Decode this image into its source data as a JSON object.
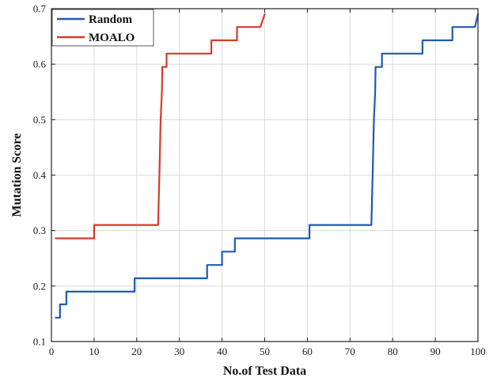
{
  "chart_data": {
    "type": "line",
    "xlabel": "No.of Test Data",
    "ylabel": "Mutation Score",
    "xlim": [
      0,
      100
    ],
    "ylim": [
      0.1,
      0.7
    ],
    "xticks": [
      0,
      10,
      20,
      30,
      40,
      50,
      60,
      70,
      80,
      90,
      100
    ],
    "yticks": [
      0.1,
      0.2,
      0.3,
      0.4,
      0.5,
      0.6,
      0.7
    ],
    "xtick_labels": [
      "0",
      "10",
      "20",
      "30",
      "40",
      "50",
      "60",
      "70",
      "80",
      "90",
      "100"
    ],
    "ytick_labels": [
      "0.1",
      "0.2",
      "0.3",
      "0.4",
      "0.5",
      "0.6",
      "0.7"
    ],
    "grid": true,
    "legend_position": "top-left",
    "series": [
      {
        "name": "Random",
        "color": "#1f5ab4",
        "points": [
          [
            1,
            0.143
          ],
          [
            2,
            0.143
          ],
          [
            2,
            0.167
          ],
          [
            3.5,
            0.167
          ],
          [
            3.5,
            0.19
          ],
          [
            19.5,
            0.19
          ],
          [
            19.5,
            0.214
          ],
          [
            36.5,
            0.214
          ],
          [
            36.5,
            0.238
          ],
          [
            40,
            0.238
          ],
          [
            40,
            0.262
          ],
          [
            43,
            0.262
          ],
          [
            43,
            0.286
          ],
          [
            60.5,
            0.286
          ],
          [
            60.5,
            0.31
          ],
          [
            75,
            0.31
          ],
          [
            75.3,
            0.4
          ],
          [
            75.6,
            0.5
          ],
          [
            75.9,
            0.55
          ],
          [
            76,
            0.595
          ],
          [
            77.5,
            0.595
          ],
          [
            77.5,
            0.619
          ],
          [
            87,
            0.619
          ],
          [
            87,
            0.643
          ],
          [
            94,
            0.643
          ],
          [
            94,
            0.667
          ],
          [
            99.3,
            0.667
          ],
          [
            100,
            0.69
          ]
        ]
      },
      {
        "name": "MOALO",
        "color": "#d83a2a",
        "points": [
          [
            1,
            0.286
          ],
          [
            10,
            0.286
          ],
          [
            10,
            0.31
          ],
          [
            25,
            0.31
          ],
          [
            25.3,
            0.4
          ],
          [
            25.6,
            0.5
          ],
          [
            25.9,
            0.55
          ],
          [
            26,
            0.595
          ],
          [
            27,
            0.595
          ],
          [
            27,
            0.619
          ],
          [
            37.5,
            0.619
          ],
          [
            37.5,
            0.643
          ],
          [
            43.5,
            0.643
          ],
          [
            43.5,
            0.667
          ],
          [
            49,
            0.667
          ],
          [
            50,
            0.69
          ]
        ]
      }
    ]
  }
}
